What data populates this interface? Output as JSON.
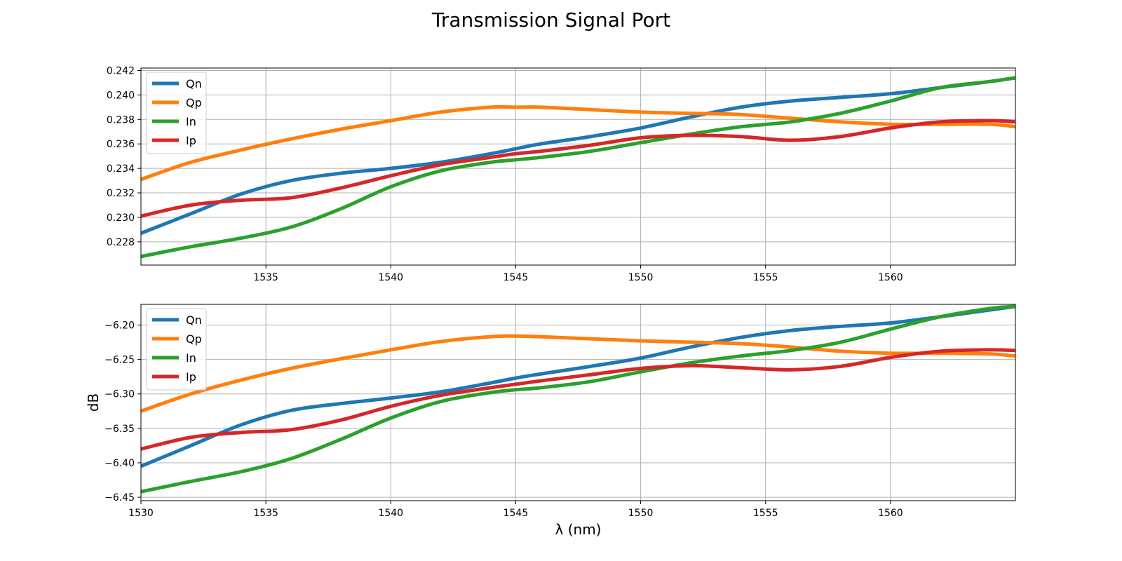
{
  "figure": {
    "title": "Transmission Signal Port"
  },
  "chart_data": [
    {
      "type": "line",
      "title": "",
      "xlabel": "",
      "ylabel": "",
      "xlim": [
        1530,
        1565
      ],
      "ylim": [
        0.2261,
        0.2422
      ],
      "xticks": [
        1535,
        1540,
        1545,
        1550,
        1555,
        1560
      ],
      "yticks": [
        0.228,
        0.23,
        0.232,
        0.234,
        0.236,
        0.238,
        0.24,
        0.242
      ],
      "ytick_labels": [
        "0.228",
        "0.230",
        "0.232",
        "0.234",
        "0.236",
        "0.238",
        "0.240",
        "0.242"
      ],
      "grid": true,
      "legend": "upper-left",
      "x": [
        1530,
        1532,
        1534,
        1536,
        1538,
        1540,
        1542,
        1544,
        1545,
        1546,
        1548,
        1550,
        1552,
        1554,
        1556,
        1558,
        1560,
        1562,
        1564,
        1565
      ],
      "series": [
        {
          "name": "Qn",
          "color": "#1f77b4",
          "values": [
            0.2287,
            0.2303,
            0.2319,
            0.233,
            0.2336,
            0.234,
            0.2345,
            0.2352,
            0.2356,
            0.236,
            0.2366,
            0.2373,
            0.2382,
            0.239,
            0.2395,
            0.2398,
            0.2401,
            0.2406,
            0.2411,
            0.2414
          ]
        },
        {
          "name": "Qp",
          "color": "#ff7f0e",
          "values": [
            0.2331,
            0.2345,
            0.2355,
            0.2364,
            0.2372,
            0.2379,
            0.2386,
            0.239,
            0.239,
            0.239,
            0.2388,
            0.2386,
            0.2385,
            0.2384,
            0.2381,
            0.2378,
            0.2376,
            0.2376,
            0.2376,
            0.2374
          ]
        },
        {
          "name": "In",
          "color": "#2ca02c",
          "values": [
            0.2268,
            0.2276,
            0.2283,
            0.2292,
            0.2307,
            0.2325,
            0.2338,
            0.2345,
            0.2347,
            0.2349,
            0.2354,
            0.2361,
            0.2368,
            0.2374,
            0.2378,
            0.2385,
            0.2395,
            0.2406,
            0.2411,
            0.2414
          ]
        },
        {
          "name": "Ip",
          "color": "#d62728",
          "values": [
            0.2301,
            0.231,
            0.2314,
            0.2316,
            0.2324,
            0.2334,
            0.2343,
            0.2349,
            0.2352,
            0.2354,
            0.2359,
            0.2365,
            0.2367,
            0.2366,
            0.2363,
            0.2366,
            0.2373,
            0.2378,
            0.2379,
            0.2378
          ]
        }
      ]
    },
    {
      "type": "line",
      "title": "",
      "xlabel": "λ (nm)",
      "ylabel": "dB",
      "xlim": [
        1530,
        1565
      ],
      "ylim": [
        -6.455,
        -6.17
      ],
      "xticks": [
        1530,
        1535,
        1540,
        1545,
        1550,
        1555,
        1560
      ],
      "yticks": [
        -6.45,
        -6.4,
        -6.35,
        -6.3,
        -6.25,
        -6.2
      ],
      "ytick_labels": [
        "−6.45",
        "−6.40",
        "−6.35",
        "−6.30",
        "−6.25",
        "−6.20"
      ],
      "grid": true,
      "legend": "upper-left",
      "x": [
        1530,
        1532,
        1534,
        1536,
        1538,
        1540,
        1542,
        1544,
        1545,
        1546,
        1548,
        1550,
        1552,
        1554,
        1556,
        1558,
        1560,
        1562,
        1564,
        1565
      ],
      "series": [
        {
          "name": "Qn",
          "color": "#1f77b4",
          "values": [
            -6.405,
            -6.375,
            -6.345,
            -6.324,
            -6.314,
            -6.306,
            -6.297,
            -6.284,
            -6.277,
            -6.271,
            -6.26,
            -6.248,
            -6.232,
            -6.218,
            -6.208,
            -6.202,
            -6.197,
            -6.188,
            -6.178,
            -6.173
          ]
        },
        {
          "name": "Qp",
          "color": "#ff7f0e",
          "values": [
            -6.325,
            -6.3,
            -6.28,
            -6.263,
            -6.249,
            -6.236,
            -6.224,
            -6.217,
            -6.216,
            -6.217,
            -6.22,
            -6.223,
            -6.225,
            -6.227,
            -6.232,
            -6.238,
            -6.241,
            -6.241,
            -6.242,
            -6.245
          ]
        },
        {
          "name": "In",
          "color": "#2ca02c",
          "values": [
            -6.442,
            -6.427,
            -6.413,
            -6.394,
            -6.366,
            -6.335,
            -6.311,
            -6.298,
            -6.294,
            -6.291,
            -6.282,
            -6.268,
            -6.255,
            -6.245,
            -6.237,
            -6.225,
            -6.206,
            -6.188,
            -6.176,
            -6.173
          ]
        },
        {
          "name": "Ip",
          "color": "#d62728",
          "values": [
            -6.38,
            -6.363,
            -6.356,
            -6.352,
            -6.338,
            -6.318,
            -6.302,
            -6.291,
            -6.286,
            -6.281,
            -6.272,
            -6.263,
            -6.259,
            -6.262,
            -6.265,
            -6.26,
            -6.247,
            -6.238,
            -6.236,
            -6.237
          ]
        }
      ]
    }
  ]
}
